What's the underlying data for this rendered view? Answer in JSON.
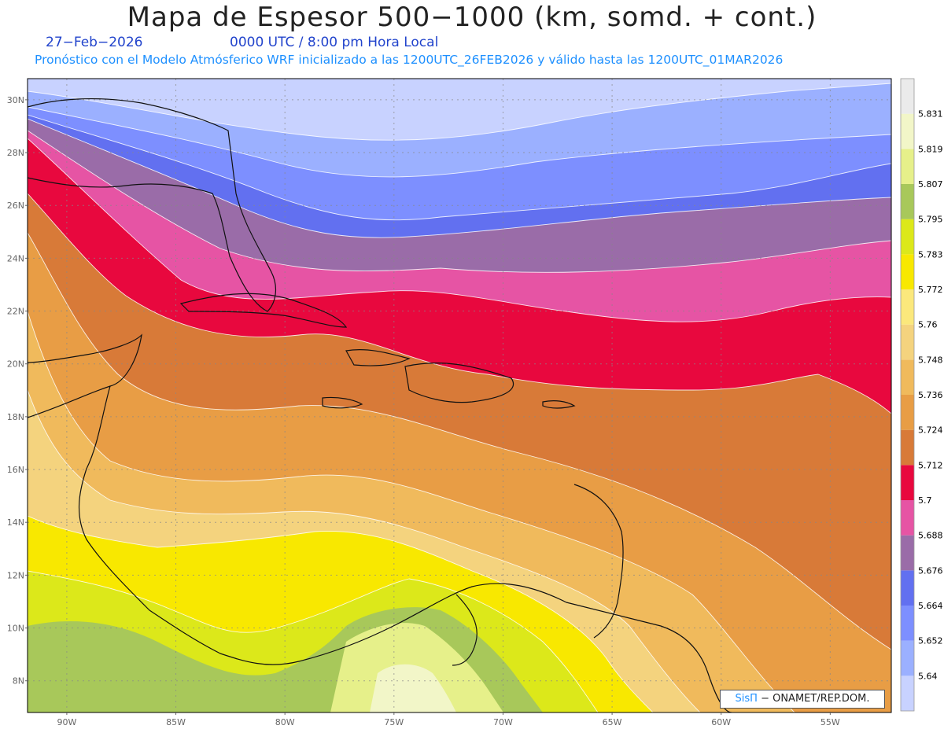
{
  "header": {
    "title": "Mapa de Espesor 500−1000 (km, somd. + cont.)",
    "date": "27−Feb−2026",
    "time": "0000 UTC / 8:00 pm Hora Local",
    "description": "Pronóstico con el Modelo Atmósferico WRF inicializado a las 1200UTC_26FEB2026 y válido hasta las  1200UTC_01MAR2026"
  },
  "map": {
    "lat_labels": [
      "30N",
      "28N",
      "26N",
      "24N",
      "22N",
      "20N",
      "18N",
      "16N",
      "14N",
      "12N",
      "10N",
      "8N"
    ],
    "lon_labels": [
      "90W",
      "85W",
      "80W",
      "75W",
      "70W",
      "65W",
      "60W",
      "55W"
    ],
    "lat_range": [
      6.8,
      30.8
    ],
    "lon_range": [
      -91.8,
      -52.2
    ]
  },
  "colorbar": {
    "colors": [
      "#c8d2ff",
      "#9bb0ff",
      "#7d8fff",
      "#6270f0",
      "#9a6ca8",
      "#e654a4",
      "#e8083e",
      "#d87a38",
      "#e89d45",
      "#f0ba5c",
      "#f4d37e",
      "#fbe87c",
      "#f8e800",
      "#dce81a",
      "#a8c85a",
      "#e6f08a",
      "#f2f6c8",
      "#ebebeb"
    ],
    "labels": [
      "5.64",
      "5.652",
      "5.664",
      "5.676",
      "5.688",
      "5.7",
      "5.712",
      "5.724",
      "5.736",
      "5.748",
      "5.76",
      "5.772",
      "5.783",
      "5.795",
      "5.807",
      "5.819",
      "5.831"
    ]
  },
  "credit": {
    "brand": "SisΠ",
    "text": " − ONAMET/REP.DOM."
  }
}
